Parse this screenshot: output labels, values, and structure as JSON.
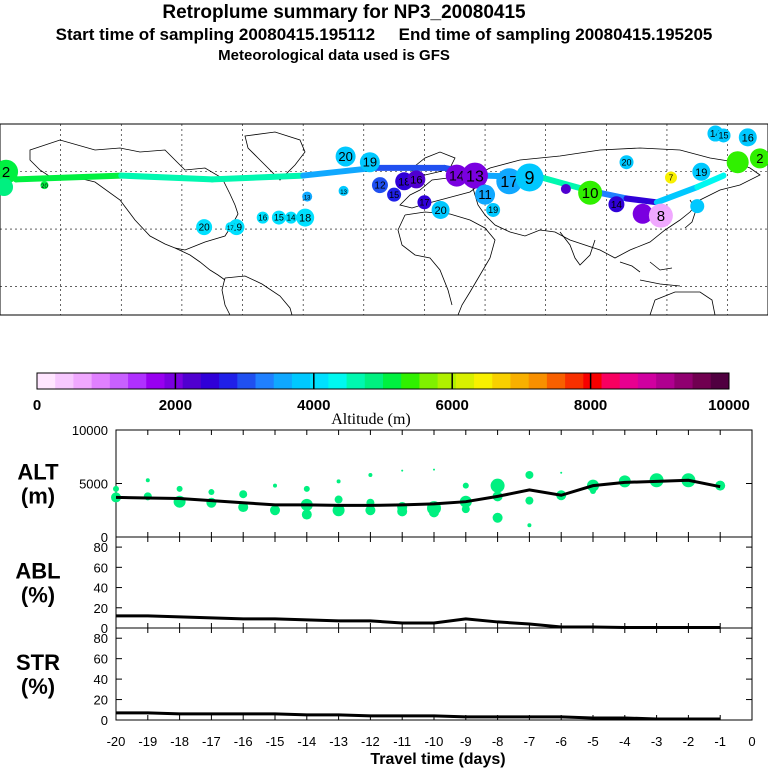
{
  "header": {
    "title": "Retroplume summary for NP3_20080415",
    "sampling": "Start time of sampling 20080415.195112     End time of sampling 20080415.195205",
    "met": "Meteorological data used is GFS"
  },
  "map": {
    "label_color": "#1fd6ee",
    "trajectory": [
      {
        "lon": -178,
        "lat": 62,
        "alt": 5200,
        "day": 2
      },
      {
        "lon": -172,
        "lat": 56,
        "alt": 5000,
        "day": 1
      },
      {
        "lon": -120,
        "lat": 58,
        "alt": 4700,
        "day": 4
      },
      {
        "lon": -75,
        "lat": 56,
        "alt": 4600,
        "day": 6
      },
      {
        "lon": -30,
        "lat": 58,
        "alt": 3500,
        "day": 7
      },
      {
        "lon": 5,
        "lat": 62,
        "alt": 3000,
        "day": 12
      },
      {
        "lon": 40,
        "lat": 62,
        "alt": 2900,
        "day": 14
      },
      {
        "lon": 60,
        "lat": 58,
        "alt": 3500,
        "day": 17
      },
      {
        "lon": 88,
        "lat": 57,
        "alt": 4500,
        "day": 10
      },
      {
        "lon": 112,
        "lat": 50,
        "alt": 3200,
        "day": 8
      },
      {
        "lon": 130,
        "lat": 46,
        "alt": 2500,
        "day": 8
      },
      {
        "lon": 145,
        "lat": 44,
        "alt": 3800,
        "day": 3
      },
      {
        "lon": 165,
        "lat": 52,
        "alt": 4300,
        "day": 3
      },
      {
        "lon": 178,
        "lat": 58,
        "alt": 4800,
        "day": 2
      }
    ],
    "clusters": [
      {
        "lon": -177,
        "lat": 60,
        "alt": 5200,
        "label": "2",
        "size": 12
      },
      {
        "lon": -178,
        "lat": 52,
        "alt": 4800,
        "label": "",
        "size": 9
      },
      {
        "lon": -158,
        "lat": 53,
        "alt": 5000,
        "label": "20",
        "size": 4
      },
      {
        "lon": -79,
        "lat": 31,
        "alt": 4000,
        "label": "20",
        "size": 8
      },
      {
        "lon": -63,
        "lat": 31,
        "alt": 4000,
        "label": "19",
        "size": 8
      },
      {
        "lon": -66,
        "lat": 31,
        "alt": 4000,
        "label": "17",
        "size": 5
      },
      {
        "lon": -50,
        "lat": 36,
        "alt": 4000,
        "label": "16",
        "size": 6
      },
      {
        "lon": -42,
        "lat": 36,
        "alt": 4000,
        "label": "15",
        "size": 7
      },
      {
        "lon": -36,
        "lat": 36,
        "alt": 4000,
        "label": "14",
        "size": 6
      },
      {
        "lon": -29,
        "lat": 36,
        "alt": 4000,
        "label": "18",
        "size": 9
      },
      {
        "lon": -28,
        "lat": 47,
        "alt": 3600,
        "label": "13",
        "size": 5
      },
      {
        "lon": -9,
        "lat": 68,
        "alt": 3800,
        "label": "20",
        "size": 10
      },
      {
        "lon": 3,
        "lat": 65,
        "alt": 3700,
        "label": "19",
        "size": 10
      },
      {
        "lon": -10,
        "lat": 50,
        "alt": 3700,
        "label": "13",
        "size": 5
      },
      {
        "lon": 8,
        "lat": 53,
        "alt": 3000,
        "label": "12",
        "size": 8
      },
      {
        "lon": 15,
        "lat": 48,
        "alt": 2800,
        "label": "15",
        "size": 7
      },
      {
        "lon": 20,
        "lat": 55,
        "alt": 2500,
        "label": "18",
        "size": 9
      },
      {
        "lon": 26,
        "lat": 56,
        "alt": 2200,
        "label": "16",
        "size": 9
      },
      {
        "lon": 30,
        "lat": 44,
        "alt": 2600,
        "label": "17",
        "size": 7
      },
      {
        "lon": 38,
        "lat": 40,
        "alt": 3800,
        "label": "20",
        "size": 9
      },
      {
        "lon": 46,
        "lat": 58,
        "alt": 2000,
        "label": "14",
        "size": 11
      },
      {
        "lon": 55,
        "lat": 58,
        "alt": 1900,
        "label": "13",
        "size": 13
      },
      {
        "lon": 60,
        "lat": 48,
        "alt": 3500,
        "label": "11",
        "size": 10
      },
      {
        "lon": 64,
        "lat": 40,
        "alt": 3700,
        "label": "19",
        "size": 7
      },
      {
        "lon": 72,
        "lat": 55,
        "alt": 3500,
        "label": "17",
        "size": 13
      },
      {
        "lon": 82,
        "lat": 57,
        "alt": 3700,
        "label": "9",
        "size": 14
      },
      {
        "lon": 100,
        "lat": 51,
        "alt": 2300,
        "label": "",
        "size": 5
      },
      {
        "lon": 112,
        "lat": 49,
        "alt": 5400,
        "label": "10",
        "size": 12
      },
      {
        "lon": 125,
        "lat": 43,
        "alt": 2600,
        "label": "14",
        "size": 8
      },
      {
        "lon": 138,
        "lat": 38,
        "alt": 2000,
        "label": "",
        "size": 10
      },
      {
        "lon": 147,
        "lat": 37,
        "alt": 600,
        "label": "8",
        "size": 12
      },
      {
        "lon": 165,
        "lat": 42,
        "alt": 3900,
        "label": "",
        "size": 7
      },
      {
        "lon": 130,
        "lat": 65,
        "alt": 3900,
        "label": "20",
        "size": 7
      },
      {
        "lon": 152,
        "lat": 57,
        "alt": 6400,
        "label": "7",
        "size": 6
      },
      {
        "lon": 167,
        "lat": 60,
        "alt": 3900,
        "label": "19",
        "size": 9
      },
      {
        "lon": 174,
        "lat": 80,
        "alt": 3900,
        "label": "14",
        "size": 8
      },
      {
        "lon": 178,
        "lat": 79,
        "alt": 3900,
        "label": "15",
        "size": 7
      },
      {
        "lon": 190,
        "lat": 78,
        "alt": 3900,
        "label": "16",
        "size": 9
      },
      {
        "lon": 185,
        "lat": 65,
        "alt": 5500,
        "label": "",
        "size": 11
      },
      {
        "lon": 196,
        "lat": 67,
        "alt": 5500,
        "label": "2",
        "size": 10
      }
    ]
  },
  "colorbar": {
    "ticks": [
      "0",
      "2000",
      "4000",
      "6000",
      "8000",
      "10000"
    ],
    "label": "Altitude (m)",
    "colors": [
      "#ffe6ff",
      "#f7c8ff",
      "#f0a8ff",
      "#e080ff",
      "#c860ff",
      "#b030ff",
      "#9800f0",
      "#7a00e0",
      "#5000d0",
      "#3000d8",
      "#2020e8",
      "#2050f0",
      "#2080ff",
      "#10a8ff",
      "#00c8ff",
      "#00e0ff",
      "#00f8f0",
      "#00f8b0",
      "#00f080",
      "#00f040",
      "#30f000",
      "#80f000",
      "#b0f000",
      "#d8f000",
      "#f8f000",
      "#f8d000",
      "#f8b000",
      "#f89000",
      "#f86000",
      "#f83000",
      "#f80000",
      "#f80060",
      "#e80090",
      "#d000a0",
      "#b00090",
      "#900070",
      "#700050",
      "#500040"
    ]
  },
  "chart_data": [
    {
      "type": "scatter",
      "panel": "ALT",
      "ylabel": "ALT\n(m)",
      "ylim": [
        0,
        10000
      ],
      "yticks": [
        0,
        5000,
        10000
      ],
      "xlim": [
        -20,
        0
      ],
      "point_color": "#00f080",
      "median_line": {
        "x": [
          -20,
          -19,
          -18,
          -17,
          -16,
          -15,
          -14,
          -13,
          -12,
          -11,
          -10,
          -9,
          -8,
          -7,
          -6,
          -5,
          -4,
          -3,
          -2,
          -1
        ],
        "y": [
          3700,
          3650,
          3600,
          3400,
          3200,
          3000,
          3000,
          2950,
          2950,
          3000,
          3100,
          3300,
          3800,
          4400,
          3900,
          4800,
          5100,
          5200,
          5300,
          4700
        ]
      },
      "points": [
        {
          "x": -20,
          "y": 4500,
          "s": 3
        },
        {
          "x": -20,
          "y": 3700,
          "s": 5
        },
        {
          "x": -19,
          "y": 5300,
          "s": 2
        },
        {
          "x": -19,
          "y": 3800,
          "s": 4
        },
        {
          "x": -18,
          "y": 4500,
          "s": 3
        },
        {
          "x": -18,
          "y": 3300,
          "s": 6
        },
        {
          "x": -17,
          "y": 4200,
          "s": 3
        },
        {
          "x": -17,
          "y": 3200,
          "s": 5
        },
        {
          "x": -16,
          "y": 4000,
          "s": 4
        },
        {
          "x": -16,
          "y": 2800,
          "s": 5
        },
        {
          "x": -15,
          "y": 2500,
          "s": 5
        },
        {
          "x": -15,
          "y": 4800,
          "s": 2
        },
        {
          "x": -14,
          "y": 4500,
          "s": 3
        },
        {
          "x": -14,
          "y": 3000,
          "s": 6
        },
        {
          "x": -14,
          "y": 2100,
          "s": 5
        },
        {
          "x": -13,
          "y": 5200,
          "s": 2
        },
        {
          "x": -13,
          "y": 3500,
          "s": 4
        },
        {
          "x": -13,
          "y": 2500,
          "s": 6
        },
        {
          "x": -12,
          "y": 5800,
          "s": 2
        },
        {
          "x": -12,
          "y": 3200,
          "s": 4
        },
        {
          "x": -12,
          "y": 2500,
          "s": 5
        },
        {
          "x": -11,
          "y": 6200,
          "s": 1
        },
        {
          "x": -11,
          "y": 2800,
          "s": 5
        },
        {
          "x": -11,
          "y": 2400,
          "s": 5
        },
        {
          "x": -10,
          "y": 6300,
          "s": 1
        },
        {
          "x": -10,
          "y": 2700,
          "s": 7
        },
        {
          "x": -10,
          "y": 2300,
          "s": 5
        },
        {
          "x": -9,
          "y": 4800,
          "s": 3
        },
        {
          "x": -9,
          "y": 3300,
          "s": 6
        },
        {
          "x": -9,
          "y": 2600,
          "s": 4
        },
        {
          "x": -8,
          "y": 4800,
          "s": 7
        },
        {
          "x": -8,
          "y": 3800,
          "s": 5
        },
        {
          "x": -8,
          "y": 1800,
          "s": 5
        },
        {
          "x": -7,
          "y": 5800,
          "s": 4
        },
        {
          "x": -7,
          "y": 3400,
          "s": 4
        },
        {
          "x": -7,
          "y": 1100,
          "s": 2
        },
        {
          "x": -6,
          "y": 6000,
          "s": 1
        },
        {
          "x": -6,
          "y": 3900,
          "s": 5
        },
        {
          "x": -5,
          "y": 4800,
          "s": 6
        },
        {
          "x": -5,
          "y": 4300,
          "s": 3
        },
        {
          "x": -4,
          "y": 5200,
          "s": 6
        },
        {
          "x": -3,
          "y": 5300,
          "s": 7
        },
        {
          "x": -2,
          "y": 5300,
          "s": 7
        },
        {
          "x": -1,
          "y": 4800,
          "s": 5
        }
      ]
    },
    {
      "type": "line",
      "panel": "ABL",
      "ylabel": "ABL\n(%)",
      "ylim": [
        0,
        90
      ],
      "yticks": [
        0,
        20,
        40,
        60,
        80
      ],
      "xlim": [
        -20,
        0
      ],
      "x": [
        -20,
        -19,
        -18,
        -17,
        -16,
        -15,
        -14,
        -13,
        -12,
        -11,
        -10,
        -9,
        -8,
        -7,
        -6,
        -5,
        -4,
        -3,
        -2,
        -1
      ],
      "y": [
        12,
        12,
        11,
        10,
        9,
        9,
        8,
        7,
        7,
        5,
        5,
        9,
        6,
        4,
        1,
        1,
        0.5,
        0.5,
        0.5,
        0.5
      ]
    },
    {
      "type": "line",
      "panel": "STR",
      "ylabel": "STR\n(%)",
      "ylim": [
        0,
        90
      ],
      "yticks": [
        0,
        20,
        40,
        60,
        80
      ],
      "xlim": [
        -20,
        0
      ],
      "xlabel": "Travel time (days)",
      "xticks": [
        "-20",
        "-19",
        "-18",
        "-17",
        "-16",
        "-15",
        "-14",
        "-13",
        "-12",
        "-11",
        "-10",
        "-9",
        "-8",
        "-7",
        "-6",
        "-5",
        "-4",
        "-3",
        "-2",
        "-1",
        "0"
      ],
      "x": [
        -20,
        -19,
        -18,
        -17,
        -16,
        -15,
        -14,
        -13,
        -12,
        -11,
        -10,
        -9,
        -8,
        -7,
        -6,
        -5,
        -4,
        -3,
        -2,
        -1
      ],
      "y": [
        7,
        7,
        6,
        6,
        6,
        6,
        5,
        5,
        4,
        4,
        4,
        3,
        3,
        3,
        3,
        2,
        2,
        1,
        1,
        1
      ]
    }
  ]
}
